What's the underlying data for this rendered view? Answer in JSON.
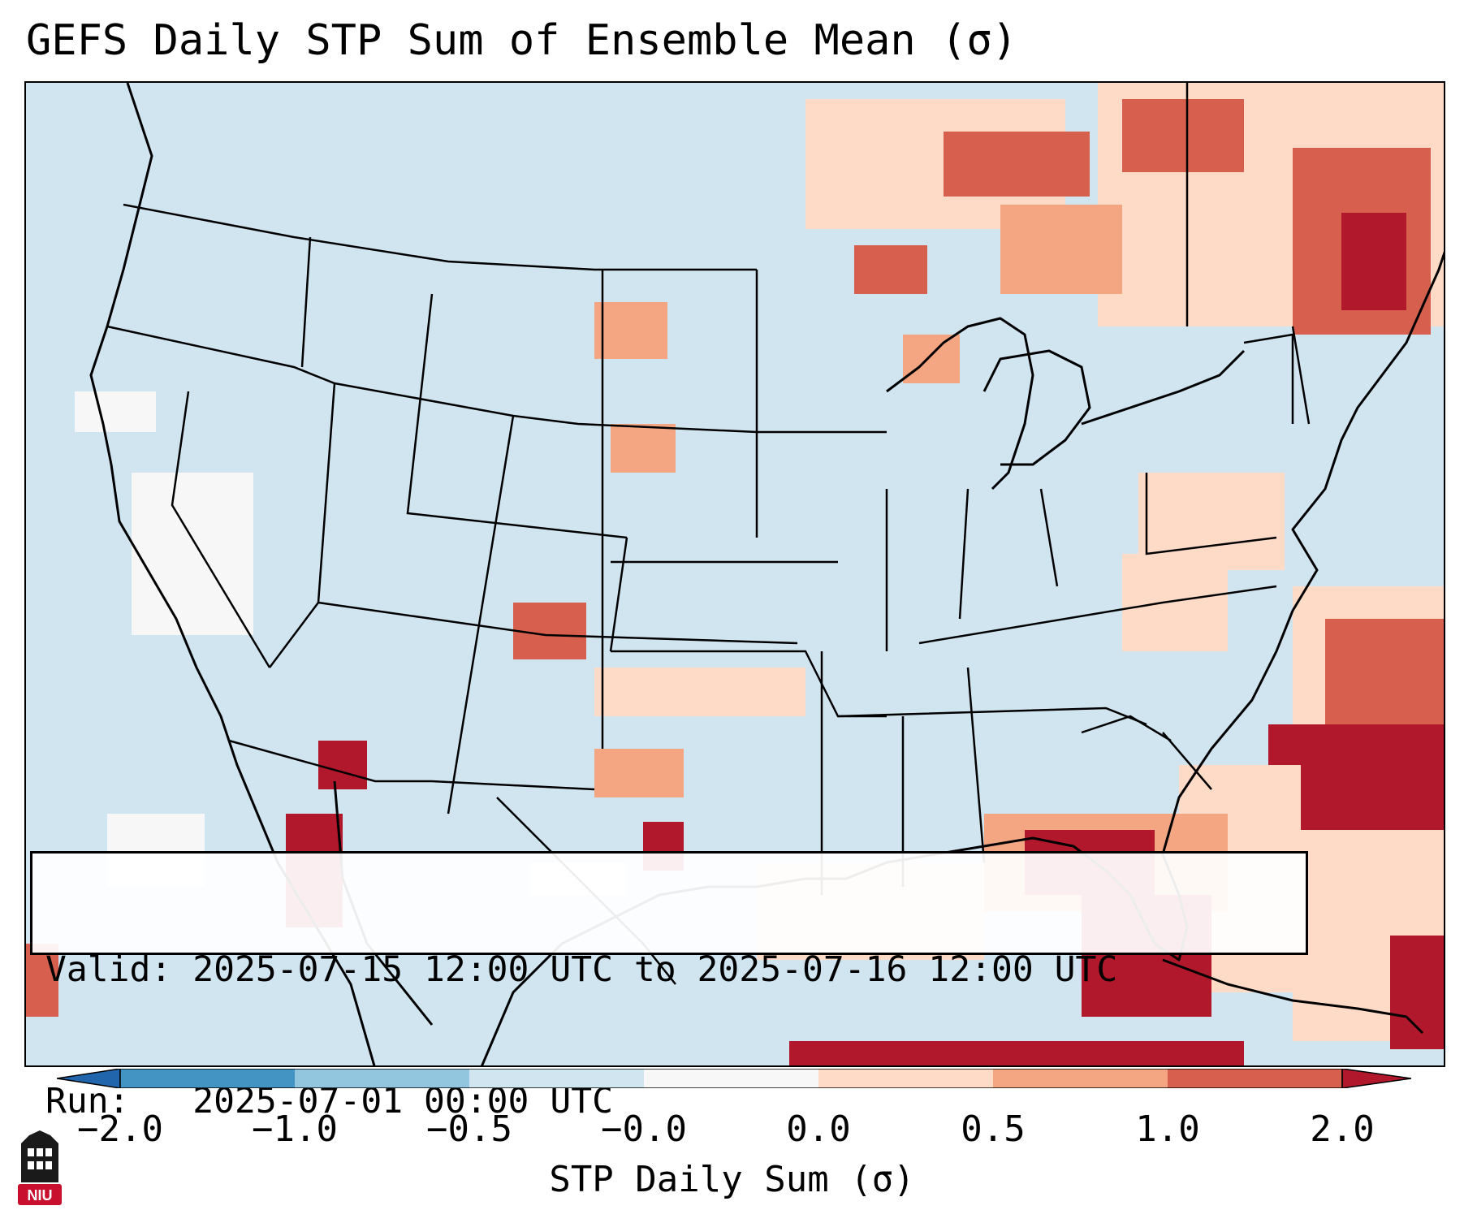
{
  "title": "GEFS Daily STP Sum of Ensemble Mean (σ)",
  "info": {
    "valid": "Valid: 2025-07-15 12:00 UTC to 2025-07-16 12:00 UTC",
    "run": "Run:   2025-07-01 00:00 UTC"
  },
  "colorbar": {
    "label": "STP Daily Sum (σ)",
    "ticks": [
      "−2.0",
      "−1.0",
      "−0.5",
      "−0.0",
      "0.0",
      "0.5",
      "1.0",
      "2.0"
    ],
    "colors": [
      "#4393c3",
      "#92c5de",
      "#d1e5f0",
      "#f7f7f7",
      "#fddbc7",
      "#f4a582",
      "#d6604d"
    ],
    "extend_low_color": "#2166ac",
    "extend_high_color": "#b2182b"
  },
  "map": {
    "background_color": "#d1e5f0",
    "region": "Contiguous United States, southern Canada, northern Mexico, Gulf of Mexico and western Atlantic"
  },
  "logo": {
    "text": "NIU",
    "color": "#c8102e"
  }
}
